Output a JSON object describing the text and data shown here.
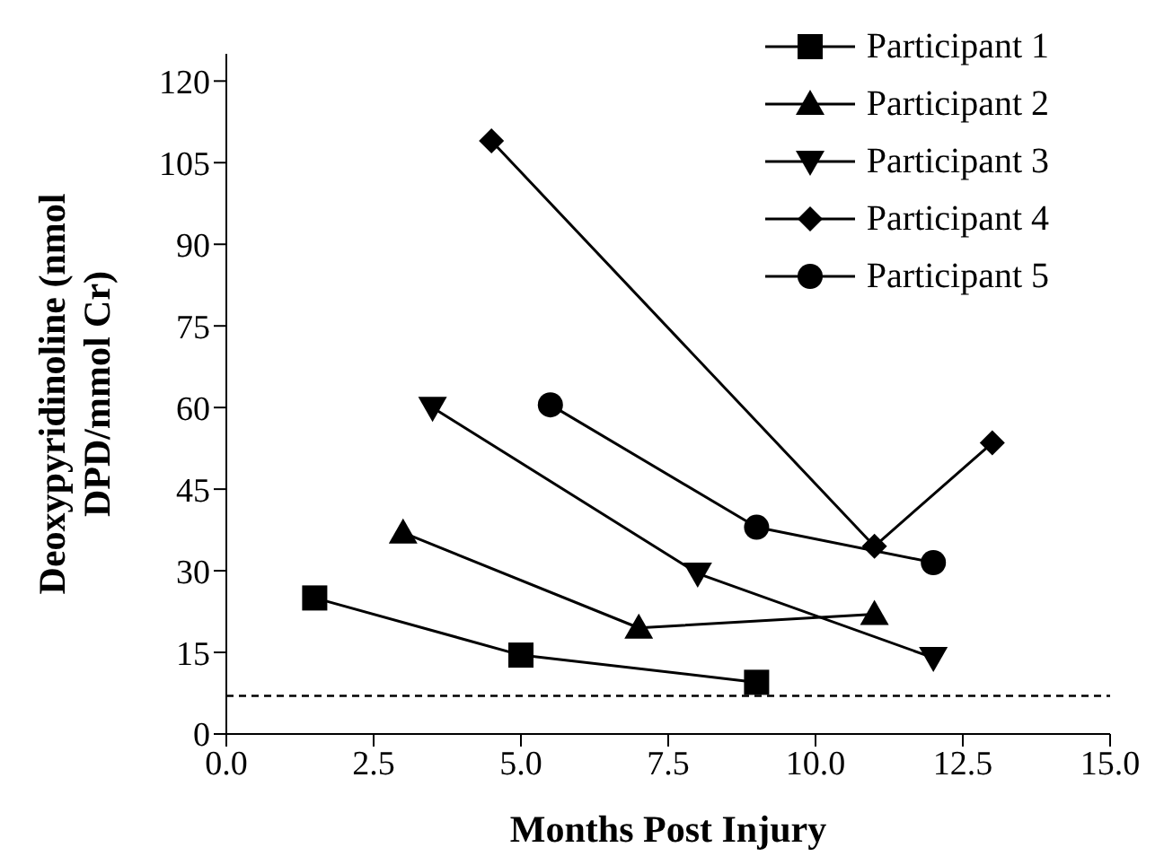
{
  "chart_data": {
    "type": "line",
    "xlabel": "Months Post Injury",
    "ylabel": "Deoxypyridinoline (nmol DPD/mmol Cr)",
    "xlim": [
      0,
      15
    ],
    "xticks": [
      {
        "value": 0,
        "label": "0.0"
      },
      {
        "value": 2.5,
        "label": "2.5"
      },
      {
        "value": 5,
        "label": "5.0"
      },
      {
        "value": 7.5,
        "label": "7.5"
      },
      {
        "value": 10,
        "label": "10.0"
      },
      {
        "value": 12.5,
        "label": "12.5"
      },
      {
        "value": 15,
        "label": "15.0"
      }
    ],
    "ylim": [
      0,
      125
    ],
    "yticks": [
      0,
      15,
      30,
      45,
      60,
      75,
      90,
      105,
      120
    ],
    "grid": false,
    "legend": "top right",
    "line_style": "solid",
    "ref_lines": [
      {
        "axis": "y",
        "value": 7,
        "line_style": "dashed",
        "color": "#000000"
      }
    ],
    "series": [
      {
        "name": "Participant 1",
        "color": "#000000",
        "marker": "square",
        "x": [
          1.5,
          5,
          9
        ],
        "values": [
          25,
          14.5,
          9.5
        ]
      },
      {
        "name": "Participant 2",
        "color": "#000000",
        "marker": "triangle",
        "x": [
          3,
          7,
          11
        ],
        "values": [
          37,
          19.5,
          22
        ]
      },
      {
        "name": "Participant 3",
        "color": "#000000",
        "marker": "triangle-down",
        "x": [
          3.5,
          8,
          12
        ],
        "values": [
          60,
          29.5,
          14
        ]
      },
      {
        "name": "Participant 4",
        "color": "#000000",
        "marker": "diamond",
        "x": [
          4.5,
          11,
          13
        ],
        "values": [
          109,
          34.5,
          53.5
        ]
      },
      {
        "name": "Participant 5",
        "color": "#000000",
        "marker": "circle",
        "x": [
          5.5,
          9,
          12
        ],
        "values": [
          60.5,
          38,
          31.5
        ]
      }
    ]
  }
}
